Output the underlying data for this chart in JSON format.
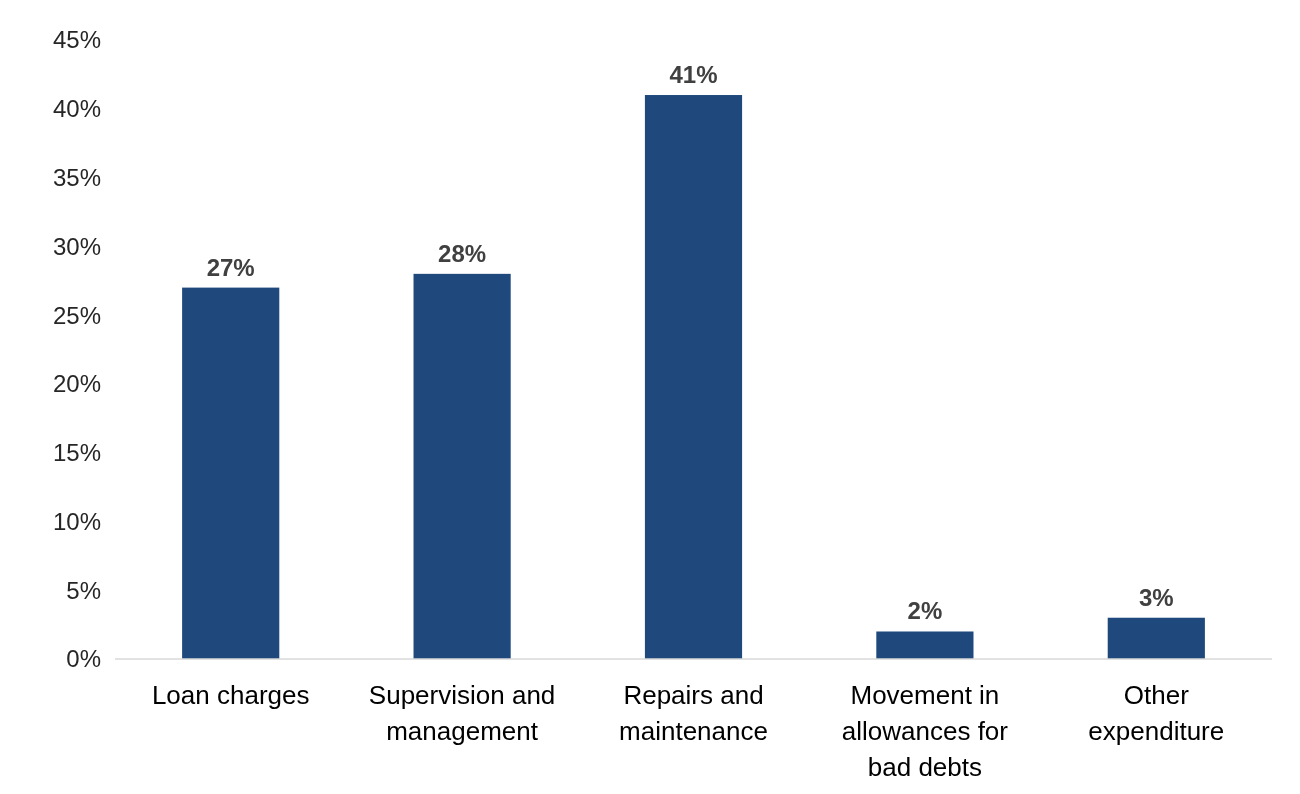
{
  "chart_data": {
    "type": "bar",
    "categories": [
      "Loan charges",
      "Supervision and management",
      "Repairs and maintenance",
      "Movement in allowances for bad debts",
      "Other expenditure"
    ],
    "values": [
      27,
      28,
      41,
      2,
      3
    ],
    "value_labels": [
      "27%",
      "28%",
      "41%",
      "2%",
      "3%"
    ],
    "color": "#1f497d",
    "ylim": [
      0,
      45
    ],
    "yticks": [
      {
        "value": 0,
        "label": "0%"
      },
      {
        "value": 5,
        "label": "5%"
      },
      {
        "value": 10,
        "label": "10%"
      },
      {
        "value": 15,
        "label": "15%"
      },
      {
        "value": 20,
        "label": "20%"
      },
      {
        "value": 25,
        "label": "25%"
      },
      {
        "value": 30,
        "label": "30%"
      },
      {
        "value": 35,
        "label": "35%"
      },
      {
        "value": 40,
        "label": "40%"
      },
      {
        "value": 45,
        "label": "45%"
      }
    ],
    "grid": false
  }
}
